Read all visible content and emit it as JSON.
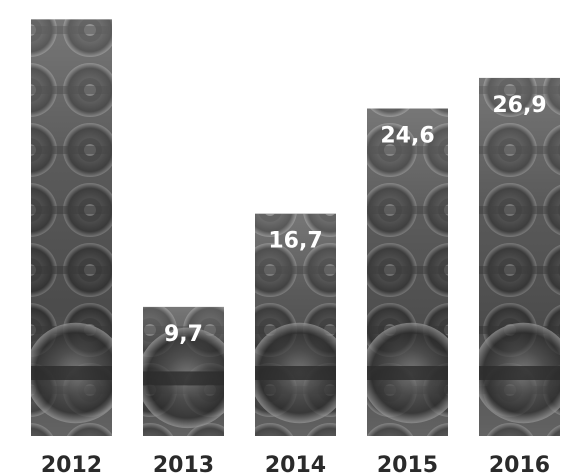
{
  "chart_data": {
    "type": "bar",
    "categories": [
      "2012",
      "2013",
      "2014",
      "2015",
      "2016"
    ],
    "values": [
      31.3,
      9.7,
      16.7,
      24.6,
      26.9
    ],
    "value_labels": [
      "",
      "9,7",
      "16,7",
      "24,6",
      "26,9"
    ],
    "title": "",
    "xlabel": "",
    "ylabel": "",
    "ylim": [
      0,
      32
    ],
    "grid": false,
    "legend": "none",
    "colors": {
      "bar_dark": "#2e2e2e",
      "bar_mid": "#6a6a6a",
      "bar_light": "#b5b5b5",
      "label": "#ffffff",
      "tick": "#2a2a2a"
    }
  }
}
